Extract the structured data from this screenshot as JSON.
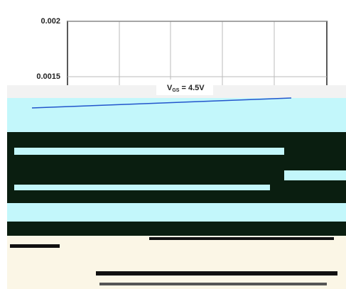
{
  "chart_data": {
    "type": "line",
    "annotation": {
      "main": "V",
      "sub": "GS",
      "rest": "= 4.5V"
    },
    "ylim": [
      0.0015,
      0.002
    ],
    "yticks": [
      0.0015,
      0.002
    ],
    "grid": true
  }
}
